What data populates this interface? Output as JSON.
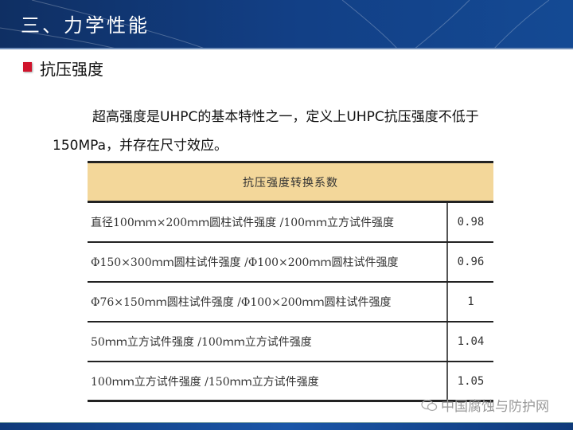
{
  "header": {
    "title": "三、力学性能"
  },
  "section": {
    "title": "抗压强度"
  },
  "body": {
    "line1": "超高强度是UHPC的基本特性之一，定义上UHPC抗压强度不低于",
    "line2": "150MPa，并存在尺寸效应。"
  },
  "table": {
    "header": "抗压强度转换系数",
    "rows": [
      {
        "label": "直径100ｍｍ×200ｍｍ圆柱试件强度 /100ｍｍ立方试件强度",
        "value": "0.98"
      },
      {
        "label": "Φ150×300ｍｍ圆柱试件强度 /Φ100×200ｍｍ圆柱试件强度",
        "value": "0.96"
      },
      {
        "label": "Φ76×150ｍｍ圆柱试件强度 /Φ100×200ｍｍ圆柱试件强度",
        "value": "1"
      },
      {
        "label": "50ｍｍ立方试件强度 /100ｍｍ立方试件强度",
        "value": "1.04"
      },
      {
        "label": "100ｍｍ立方试件强度 /150ｍｍ立方试件强度",
        "value": "1.05"
      }
    ]
  },
  "watermark": {
    "text": "中国腐蚀与防护网",
    "icon": "wechat-icon"
  },
  "colors": {
    "header": "#123f85",
    "bullet": "#d0142c",
    "table_header": "#f3d79a"
  }
}
